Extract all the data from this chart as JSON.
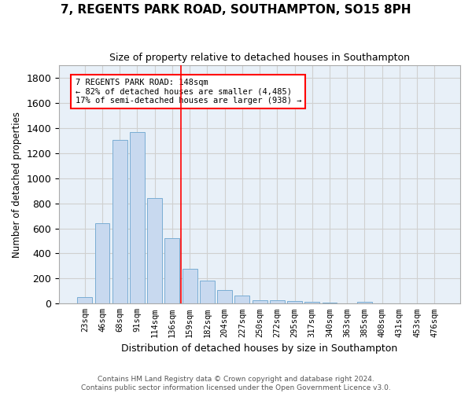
{
  "title": "7, REGENTS PARK ROAD, SOUTHAMPTON, SO15 8PH",
  "subtitle": "Size of property relative to detached houses in Southampton",
  "xlabel": "Distribution of detached houses by size in Southampton",
  "ylabel": "Number of detached properties",
  "categories": [
    "23sqm",
    "46sqm",
    "68sqm",
    "91sqm",
    "114sqm",
    "136sqm",
    "159sqm",
    "182sqm",
    "204sqm",
    "227sqm",
    "250sqm",
    "272sqm",
    "295sqm",
    "317sqm",
    "340sqm",
    "363sqm",
    "385sqm",
    "408sqm",
    "431sqm",
    "453sqm",
    "476sqm"
  ],
  "values": [
    55,
    640,
    1305,
    1370,
    840,
    525,
    275,
    185,
    110,
    65,
    30,
    28,
    18,
    12,
    8,
    5,
    14,
    0,
    0,
    0,
    0
  ],
  "bar_color": "#c8d9ef",
  "bar_edge_color": "#7aadd4",
  "grid_color": "#d0d0d0",
  "bg_color": "#e8f0f8",
  "vline_x": 5.5,
  "vline_color": "red",
  "annotation_text": "7 REGENTS PARK ROAD: 148sqm\n← 82% of detached houses are smaller (4,485)\n17% of semi-detached houses are larger (938) →",
  "annotation_box_color": "white",
  "annotation_box_edge_color": "red",
  "ylim": [
    0,
    1900
  ],
  "yticks": [
    0,
    200,
    400,
    600,
    800,
    1000,
    1200,
    1400,
    1600,
    1800
  ],
  "footer": "Contains HM Land Registry data © Crown copyright and database right 2024.\nContains public sector information licensed under the Open Government Licence v3.0."
}
